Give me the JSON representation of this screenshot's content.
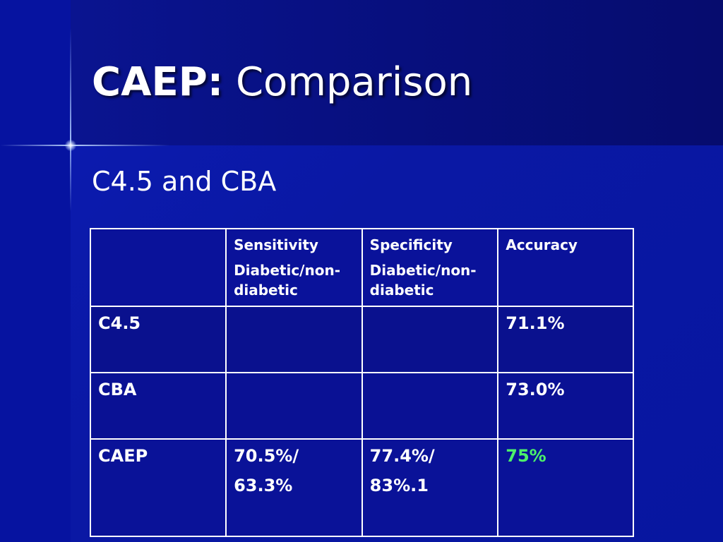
{
  "slide": {
    "title_bold": "CAEP:",
    "title_rest": "Comparison",
    "subtitle": "C4.5 and CBA"
  },
  "table": {
    "headers": [
      {
        "line1": "",
        "line2": ""
      },
      {
        "line1": "Sensitivity",
        "line2": "Diabetic/non-diabetic"
      },
      {
        "line1": "Specificity",
        "line2": "Diabetic/non-diabetic"
      },
      {
        "line1": "Accuracy",
        "line2": ""
      }
    ],
    "rows": [
      {
        "label": "C4.5",
        "sensitivity": "",
        "specificity": "",
        "accuracy": "71.1%"
      },
      {
        "label": "CBA",
        "sensitivity": "",
        "specificity": "",
        "accuracy": "73.0%"
      },
      {
        "label": "CAEP",
        "sensitivity_1": "70.5%/",
        "sensitivity_2": "63.3%",
        "specificity_1": "77.4%/",
        "specificity_2": "83%.1",
        "accuracy": "75%"
      }
    ]
  },
  "colors": {
    "background": "#0a1aa8",
    "header_band": "#070f7e",
    "text": "#ffffff",
    "accent_highlight": "#4cf06a"
  }
}
